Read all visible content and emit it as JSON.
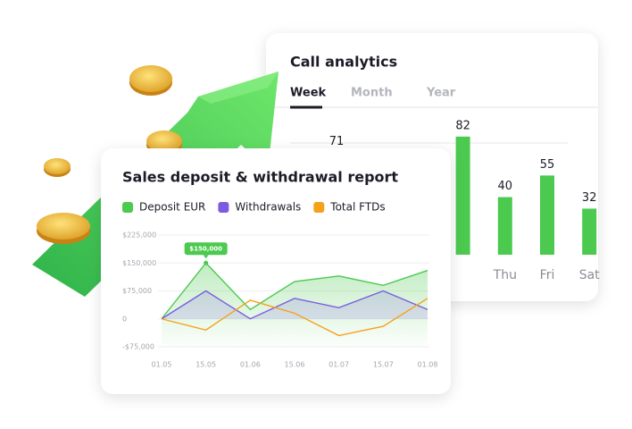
{
  "chart_data": [
    {
      "type": "bar",
      "title": "Call analytics",
      "tabs": [
        "Week",
        "Month",
        "Year"
      ],
      "categories": [
        null,
        null,
        null,
        "Thu",
        "Fri",
        "Sat"
      ],
      "values": [
        71,
        null,
        82,
        40,
        55,
        32
      ],
      "color": "#4cc94f",
      "ylim": [
        0,
        85
      ]
    },
    {
      "type": "line",
      "title": "Sales deposit & withdrawal report",
      "categories": [
        "01.05",
        "15.05",
        "01.06",
        "15.06",
        "01.07",
        "15.07",
        "01.08"
      ],
      "series": [
        {
          "name": "Deposit EUR",
          "color": "#4cc94f",
          "values": [
            0,
            150000,
            25000,
            100000,
            115000,
            90000,
            130000
          ],
          "value_labels": [
            null,
            "$150,000",
            null,
            null,
            null,
            null,
            null
          ]
        },
        {
          "name": "Withdrawals",
          "color": "#7b5ce0",
          "values": [
            0,
            75000,
            0,
            55000,
            30000,
            75000,
            25000
          ]
        },
        {
          "name": "Total FTDs",
          "color": "#f5a11a",
          "values": [
            0,
            -30000,
            50000,
            15000,
            -45000,
            -20000,
            55000
          ]
        }
      ],
      "ylim": [
        -75000,
        225000
      ],
      "yticks": [
        {
          "value": 225000,
          "label": "$225,000"
        },
        {
          "value": 150000,
          "label": "$150,000"
        },
        {
          "value": 75000,
          "label": "$75,000"
        },
        0,
        {
          "value": -75000,
          "label": "-$75,000"
        }
      ],
      "grid": true
    }
  ]
}
